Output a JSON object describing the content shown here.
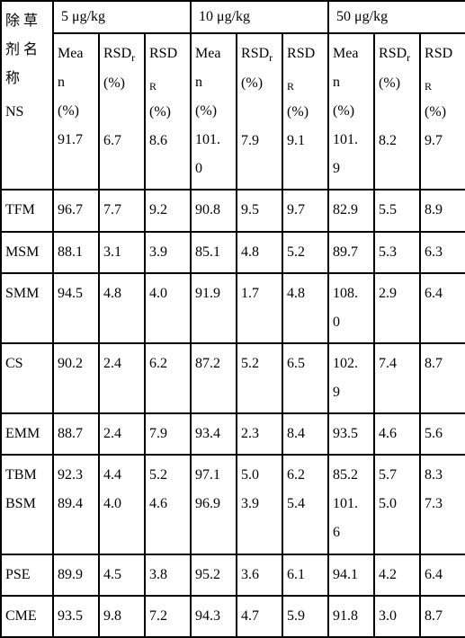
{
  "header": {
    "rowname_lines": [
      "除 草",
      "剂 名",
      "称"
    ],
    "groups": [
      {
        "label": "5 μg/kg"
      },
      {
        "label": "10 μg/kg"
      },
      {
        "label": "50 μg/kg"
      }
    ],
    "subcols": [
      {
        "l1": "Mea",
        "l2": "n",
        "l3": "(%)"
      },
      {
        "l1": "RSD",
        "sub1": "r",
        "l2": "(%)",
        "l3": ""
      },
      {
        "l1": "RSD",
        "sub1": "",
        "l2x": "R",
        "l3": "(%)"
      }
    ]
  },
  "ns_row": {
    "name": "NS",
    "vals": [
      "91.7",
      "6.7",
      "8.6",
      "101.",
      "7.9",
      "9.1",
      "101.",
      "8.2",
      "9.7"
    ],
    "vals_extra": {
      "3": "0",
      "6": "9"
    }
  },
  "rows": [
    {
      "name": "TFM",
      "v": [
        "96.7",
        "7.7",
        "9.2",
        "90.8",
        "9.5",
        "9.7",
        "82.9",
        "5.5",
        "8.9"
      ]
    },
    {
      "name": "MSM",
      "v": [
        "88.1",
        "3.1",
        "3.9",
        "85.1",
        "4.8",
        "5.2",
        "89.7",
        "5.3",
        "6.3"
      ]
    },
    {
      "name": "SMM",
      "v": [
        "94.5",
        "4.8",
        "4.0",
        "91.9",
        "1.7",
        "4.8",
        "108.",
        "2.9",
        "6.4"
      ],
      "extra": {
        "6": "0"
      }
    },
    {
      "name": "CS",
      "v": [
        "90.2",
        "2.4",
        "6.2",
        "87.2",
        "5.2",
        "6.5",
        "102.",
        "7.4",
        "8.7"
      ],
      "extra": {
        "6": "9"
      }
    },
    {
      "name": "EMM",
      "v": [
        "88.7",
        "2.4",
        "7.9",
        "93.4",
        "2.3",
        "8.4",
        "93.5",
        "4.6",
        "5.6"
      ]
    },
    {
      "name": "TBM",
      "name2": "BSM",
      "v": [
        "92.3",
        "4.4",
        "5.2",
        "97.1",
        "5.0",
        "6.2",
        "85.2",
        "5.7",
        "8.3"
      ],
      "v2": [
        "89.4",
        "4.0",
        "4.6",
        "96.9",
        "3.9",
        "5.4",
        "101.",
        "5.0",
        "7.3"
      ],
      "extra2": {
        "6": "6"
      }
    },
    {
      "name": "PSE",
      "v": [
        "89.9",
        "4.5",
        "3.8",
        "95.2",
        "3.6",
        "6.1",
        "94.1",
        "4.2",
        "6.4"
      ]
    },
    {
      "name": "CME",
      "v": [
        "93.5",
        "9.8",
        "7.2",
        "94.3",
        "4.7",
        "5.9",
        "91.8",
        "3.0",
        "8.7"
      ]
    }
  ]
}
